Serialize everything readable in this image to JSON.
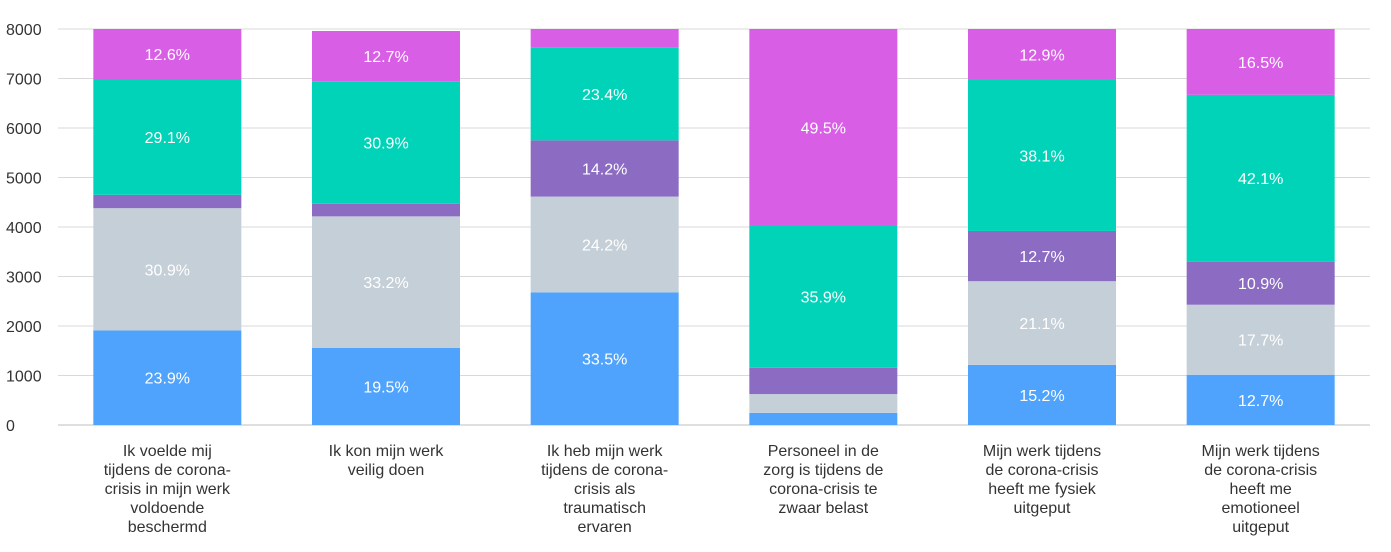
{
  "chart_data": {
    "type": "bar",
    "stacked": true,
    "ylim": [
      0,
      8000
    ],
    "yticks": [
      0,
      1000,
      2000,
      3000,
      4000,
      5000,
      6000,
      7000,
      8000
    ],
    "grid": true,
    "categories": [
      [
        "Ik voelde mij",
        "tijdens de corona-",
        "crisis in mijn werk",
        "voldoende",
        "beschermd"
      ],
      [
        "Ik kon mijn werk",
        "veilig doen"
      ],
      [
        "Ik heb mijn werk",
        "tijdens de corona-",
        "crisis als",
        "traumatisch",
        "ervaren"
      ],
      [
        "Personeel in de",
        "zorg is tijdens de",
        "corona-crisis te",
        "zwaar belast"
      ],
      [
        "Mijn werk tijdens",
        "de corona-crisis",
        "heeft me fysiek",
        "uitgeput"
      ],
      [
        "Mijn werk tijdens",
        "de corona-crisis",
        "heeft me",
        "emotioneel",
        "uitgeput"
      ]
    ],
    "series": [
      {
        "color": "#4fa3fc",
        "values": [
          1910,
          1560,
          2680,
          245,
          1215,
          1015
        ],
        "labels": [
          "23.9%",
          "19.5%",
          "33.5%",
          "",
          "15.2%",
          "12.7%"
        ]
      },
      {
        "color": "#c5cfd8",
        "values": [
          2470,
          2655,
          1935,
          380,
          1690,
          1415
        ],
        "labels": [
          "30.9%",
          "33.2%",
          "24.2%",
          "",
          "21.1%",
          "17.7%"
        ]
      },
      {
        "color": "#8c6bc3",
        "values": [
          270,
          255,
          1135,
          530,
          1015,
          870
        ],
        "labels": [
          "",
          "",
          "14.2%",
          "",
          "12.7%",
          "10.9%"
        ]
      },
      {
        "color": "#00d3b8",
        "values": [
          2330,
          2475,
          1870,
          2875,
          3050,
          3370
        ],
        "labels": [
          "29.1%",
          "30.9%",
          "23.4%",
          "35.9%",
          "38.1%",
          "42.1%"
        ]
      },
      {
        "color": "#d95ee6",
        "values": [
          1020,
          1015,
          380,
          3970,
          1030,
          1330
        ],
        "labels": [
          "12.6%",
          "12.7%",
          "",
          "49.5%",
          "12.9%",
          "16.5%"
        ]
      }
    ]
  }
}
